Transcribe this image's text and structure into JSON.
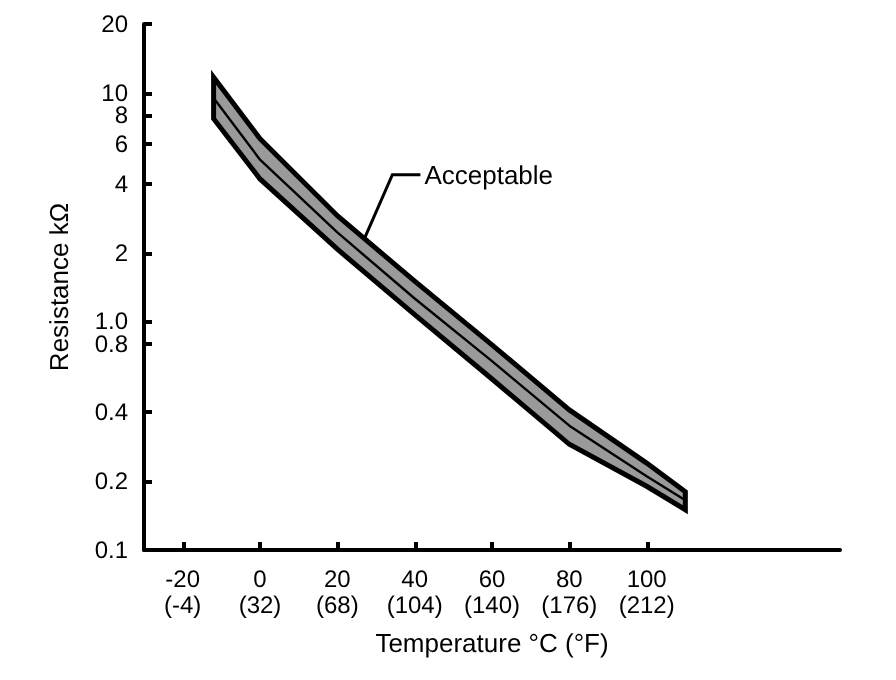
{
  "chart_data": {
    "type": "line",
    "xlabel": "Temperature °C (°F)",
    "ylabel": "Resistance kΩ",
    "x": [
      -12,
      0,
      20,
      40,
      60,
      80,
      100,
      110
    ],
    "series": [
      {
        "color": "#000000",
        "values": [
          9.5,
          5.1,
          2.45,
          1.26,
          0.67,
          0.35,
          0.21,
          0.165
        ],
        "lower": [
          7.7,
          4.2,
          2.07,
          1.07,
          0.56,
          0.29,
          0.19,
          0.15
        ],
        "upper": [
          11.7,
          6.3,
          2.9,
          1.5,
          0.79,
          0.41,
          0.24,
          0.18
        ]
      }
    ],
    "xlim": [
      -30,
      150
    ],
    "xticks": [
      -20,
      0,
      20,
      40,
      60,
      80,
      100
    ],
    "x2lim": [
      -22,
      302
    ],
    "x2ticks": [
      {
        "value": -4,
        "label": "(-4)"
      },
      {
        "value": 32,
        "label": "(32)"
      },
      {
        "value": 68,
        "label": "(68)"
      },
      {
        "value": 104,
        "label": "(104)"
      },
      {
        "value": 140,
        "label": "(140)"
      },
      {
        "value": 176,
        "label": "(176)"
      },
      {
        "value": 212,
        "label": "(212)"
      }
    ],
    "ylim": [
      0.1,
      20
    ],
    "yticks": [
      0.1,
      0.2,
      0.4,
      {
        "value": 0.8,
        "label": "0.8"
      },
      {
        "value": 1,
        "label": "1.0"
      },
      2,
      4,
      6,
      8,
      10,
      20
    ],
    "log": "y",
    "grid": false,
    "marker": "none",
    "line_style": "solid",
    "annotations": [
      {
        "text": "Acceptable",
        "x": 27,
        "y": 2.3
      }
    ]
  }
}
